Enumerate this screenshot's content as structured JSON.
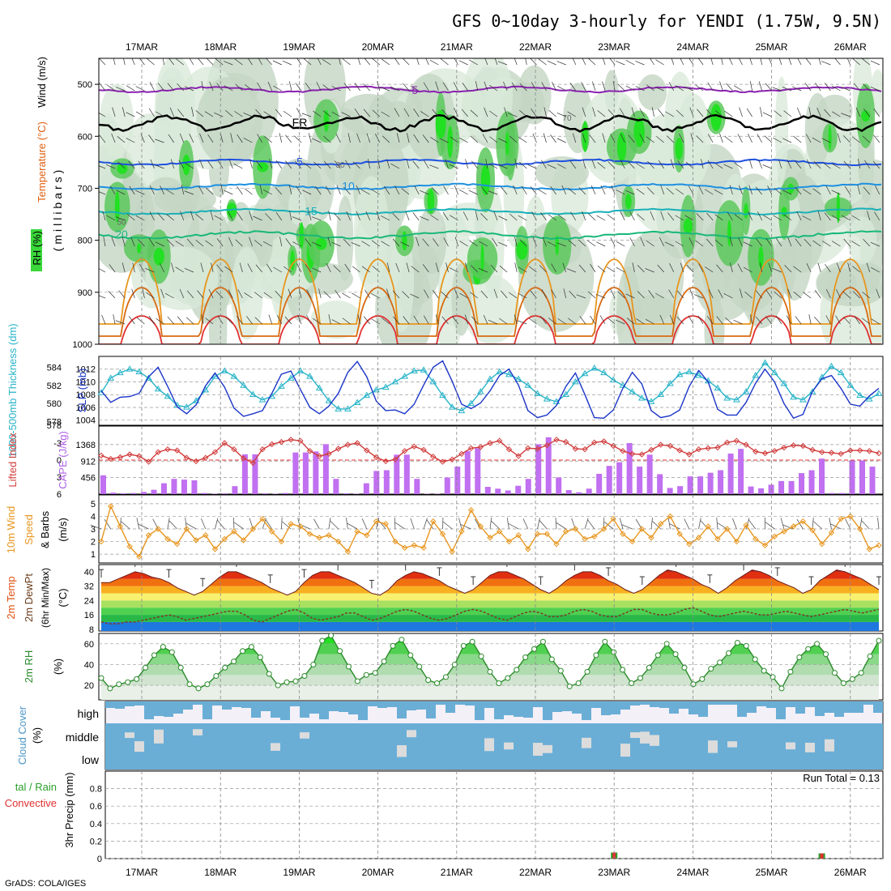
{
  "title": "GFS 0~10day 3-hourly for YENDI (1.75W, 9.5N)",
  "footer": "GrADS: COLA/IGES",
  "dates": [
    "17MAR",
    "18MAR",
    "19MAR",
    "20MAR",
    "21MAR",
    "22MAR",
    "23MAR",
    "24MAR",
    "25MAR",
    "26MAR"
  ],
  "colors": {
    "rh_green_light": "#e6f4e6",
    "rh_green_mid": "#c8dcc8",
    "rh_green_bright": "#3ad83a",
    "slp_line": "#1a34c8",
    "thickness_line": "#28b4c8",
    "li_line": "#d23c3c",
    "cape_bar": "#c070f0",
    "wind_line": "#e8961e",
    "rh_line": "#2a8a2a",
    "cloud": "#6aaed6",
    "precip_rain": "#2aa02a",
    "precip_conv": "#e03030"
  },
  "chart_data": [
    {
      "type": "area",
      "panel": "upper-air",
      "ylabel": "(millibars)",
      "side_labels": [
        "Wind (m/s)",
        "Temperature (°C)",
        "RH (%)"
      ],
      "yticks": [
        500,
        600,
        700,
        800,
        900,
        1000
      ],
      "ylim": [
        1000,
        450
      ],
      "isotherm_labels": [
        "-5",
        "FR",
        "5",
        "10",
        "15",
        "20"
      ],
      "rh_labels": [
        "30",
        "50",
        "70"
      ]
    },
    {
      "type": "line",
      "panel": "slp-thickness",
      "ylabel_left": "1000-500mb Thickness (dm)",
      "ylabel_right": "SLP (mb)",
      "thickness_ticks": [
        578,
        580,
        582,
        584
      ],
      "slp_ticks": [
        1004,
        1006,
        1008,
        1010,
        1012
      ],
      "series": [
        {
          "name": "SLP",
          "axis": "slp",
          "values": [
            1008.6,
            1006.8,
            1007.6,
            1007.7,
            1008.2,
            1010.8,
            1012.3,
            1009.3,
            1006.1,
            1005.0,
            1006.4,
            1009.4,
            1011.4,
            1009.2,
            1005.9,
            1004.6,
            1005.0,
            1005.5,
            1008.2,
            1011.2,
            1011.7,
            1008.8,
            1006.0,
            1005.0,
            1006.2,
            1008.2,
            1011.5,
            1013.2,
            1010.8,
            1007.0,
            1005.5,
            1005.6,
            1005.0,
            1006.5,
            1009.5,
            1012.3,
            1013.3,
            1010.1,
            1006.5,
            1005.8,
            1006.7,
            1008.6,
            1011.0,
            1012.0,
            1009.5,
            1005.5,
            1004.4,
            1004.8,
            1006.3,
            1009.3,
            1011.4,
            1008.0,
            1004.4,
            1004.3,
            1005.6,
            1009.0,
            1011.5,
            1009.7,
            1005.5,
            1004.4,
            1004.7,
            1005.6,
            1009.3,
            1011.8,
            1010.0,
            1005.7,
            1004.8,
            1004.8,
            1006.8,
            1009.8,
            1012.0,
            1010.0,
            1006.6,
            1004.3,
            1004.9,
            1008.5,
            1010.5,
            1011.0,
            1009.0,
            1006.5,
            1006.2,
            1007.8,
            1009.0
          ]
        },
        {
          "name": "Thickness",
          "axis": "thickness",
          "values": [
            581.2,
            582.8,
            583.4,
            583.8,
            583.5,
            582.8,
            581.6,
            580.8,
            579.8,
            579.6,
            580.3,
            581.5,
            583.0,
            583.6,
            583.0,
            582.0,
            581.0,
            580.4,
            580.8,
            581.9,
            582.8,
            583.6,
            583.0,
            581.7,
            580.3,
            579.4,
            579.4,
            580.1,
            580.9,
            581.5,
            581.8,
            582.4,
            583.0,
            583.6,
            583.7,
            582.4,
            580.9,
            579.6,
            579.2,
            580.0,
            581.3,
            582.7,
            583.5,
            583.2,
            582.7,
            582.0,
            581.1,
            580.5,
            580.2,
            581.0,
            582.4,
            583.3,
            583.9,
            583.4,
            582.6,
            582.0,
            581.3,
            580.6,
            580.2,
            581.0,
            582.2,
            583.2,
            583.5,
            583.1,
            582.5,
            581.7,
            580.6,
            580.4,
            581.3,
            583.1,
            584.5,
            583.4,
            582.2,
            580.7,
            580.4,
            581.3,
            582.9,
            584.1,
            583.4,
            582.0,
            580.9,
            580.5,
            581.1
          ]
        }
      ]
    },
    {
      "type": "bar",
      "panel": "cape-li",
      "ylabel_left": "Lifted Index",
      "ylabel_right": "CAPE (J/kg)",
      "li_ticks": [
        -3,
        0,
        3,
        6
      ],
      "cape_ticks": [
        456,
        912,
        1368
      ],
      "series": [
        {
          "name": "CAPE",
          "axis": "cape",
          "values": [
            520,
            40,
            20,
            30,
            60,
            120,
            300,
            420,
            400,
            380,
            30,
            10,
            20,
            220,
            1100,
            1100,
            20,
            10,
            30,
            1150,
            1150,
            1180,
            1380,
            420,
            20,
            10,
            300,
            640,
            660,
            1090,
            1090,
            420,
            10,
            10,
            460,
            760,
            1190,
            1270,
            200,
            150,
            100,
            230,
            420,
            1380,
            1570,
            460,
            110,
            50,
            150,
            560,
            780,
            880,
            1410,
            760,
            1090,
            550,
            170,
            220,
            490,
            490,
            590,
            660,
            1120,
            1250,
            210,
            160,
            260,
            360,
            360,
            580,
            660,
            980,
            30,
            30,
            930,
            930,
            760
          ]
        },
        {
          "name": "Lifted Index",
          "axis": "li",
          "values": [
            -0.8,
            -0.2,
            -0.5,
            -1.0,
            -0.7,
            0.3,
            -1.4,
            -1.9,
            -1.7,
            -0.4,
            0.2,
            -0.4,
            -1.4,
            -3.0,
            -1.9,
            -0.3,
            0.5,
            -1.9,
            -2.8,
            -3.2,
            -3.6,
            -3.4,
            -1.6,
            -0.7,
            -1.1,
            -2.0,
            -2.7,
            -3.0,
            -1.7,
            -0.5,
            0.2,
            -0.1,
            -1.6,
            -2.4,
            -1.8,
            -0.6,
            0.3,
            -0.1,
            -1.1,
            -2.1,
            -2.3,
            -3.0,
            -3.4,
            -1.9,
            -0.7,
            -2.1,
            -2.0,
            -2.6,
            -3.6,
            -3.2,
            -2.0,
            -1.9,
            -3.1,
            -3.3,
            -2.5,
            -1.6,
            -1.1,
            -1.0,
            -1.8,
            -2.7,
            -2.5,
            -1.7,
            -1.0,
            -1.9,
            -2.1,
            -2.2,
            -3.1,
            -3.4,
            -2.7,
            -1.5,
            -1.2,
            -1.6,
            -2.2,
            -2.6,
            -2.5,
            -1.8,
            -1.4,
            -1.3,
            -1.1,
            -1.7,
            -1.7,
            -1.6,
            -1.2
          ]
        }
      ]
    },
    {
      "type": "line",
      "panel": "wind",
      "ylabel": "10m Wind Speed & Barbs (m/s)",
      "yticks": [
        1,
        2,
        3,
        4,
        5
      ],
      "ylim": [
        0.5,
        5.5
      ],
      "series": [
        {
          "name": "10m Wind Speed",
          "values": [
            2.0,
            4.8,
            3.2,
            1.6,
            0.8,
            2.5,
            3.0,
            2.2,
            1.8,
            3.0,
            2.1,
            2.5,
            1.4,
            2.2,
            2.8,
            2.1,
            3.0,
            3.8,
            2.8,
            2.0,
            3.4,
            3.2,
            2.6,
            2.3,
            2.5,
            2.0,
            1.2,
            2.8,
            2.5,
            3.6,
            3.4,
            2.0,
            1.5,
            1.7,
            1.5,
            3.6,
            2.6,
            1.2,
            2.8,
            4.5,
            3.2,
            2.3,
            2.8,
            2.0,
            2.5,
            1.4,
            2.6,
            2.6,
            1.8,
            2.8,
            3.0,
            2.2,
            2.4,
            3.0,
            3.8,
            2.6,
            2.0,
            3.0,
            2.3,
            3.4,
            4.0,
            2.6,
            1.8,
            2.3,
            3.2,
            2.2,
            3.0,
            2.0,
            3.3,
            2.2,
            1.7,
            2.4,
            2.8,
            3.2,
            3.6,
            2.9,
            1.8,
            2.7,
            3.8,
            4.0,
            3.0,
            1.4,
            1.7
          ]
        }
      ]
    },
    {
      "type": "line",
      "panel": "temperature",
      "ylabel": "2m Temp / 2m DewPt (6hr Min/Max) (°C)",
      "yticks": [
        8,
        16,
        24,
        32,
        40
      ],
      "ylim": [
        8,
        44
      ],
      "series": [
        {
          "name": "2m Temp",
          "values": [
            34,
            34,
            36,
            38,
            40,
            39,
            37,
            36,
            34,
            31,
            29,
            27,
            29,
            33,
            37,
            40,
            40,
            38,
            36,
            34,
            31,
            29,
            27,
            29,
            34,
            38,
            40,
            40,
            38,
            36,
            34,
            31,
            28,
            27,
            30,
            35,
            38,
            40,
            39,
            37,
            35,
            32,
            30,
            28,
            30,
            34,
            38,
            40,
            40,
            38,
            36,
            33,
            30,
            28,
            31,
            35,
            38,
            40,
            40,
            38,
            35,
            33,
            30,
            28,
            30,
            34,
            38,
            41,
            40,
            38,
            36,
            33,
            31,
            28,
            31,
            35,
            38,
            41,
            40,
            38,
            35,
            33,
            31,
            28,
            30,
            35,
            38,
            41,
            40,
            38,
            36,
            33,
            30
          ]
        },
        {
          "name": "2m DewPt",
          "values": [
            12,
            11,
            11,
            12,
            12,
            13,
            14,
            15,
            16,
            15,
            13,
            14,
            15,
            16,
            17,
            18,
            18,
            16,
            13,
            12,
            14,
            16,
            18,
            19,
            17,
            14,
            13,
            14,
            15,
            17,
            17,
            15,
            13,
            14,
            16,
            18,
            19,
            18,
            16,
            14,
            13,
            14,
            16,
            18,
            19,
            18,
            16,
            14,
            13,
            15,
            17,
            18,
            17,
            15,
            15,
            16,
            18,
            19,
            18,
            16,
            15,
            15,
            17,
            19,
            19,
            17,
            16,
            16,
            17,
            19,
            20,
            18,
            16,
            15,
            16,
            17,
            18,
            17,
            16,
            16,
            17,
            18,
            17,
            16,
            15,
            16,
            17,
            18,
            19,
            18,
            17,
            18,
            19
          ]
        }
      ]
    },
    {
      "type": "line",
      "panel": "rh",
      "ylabel": "2m RH (%)",
      "yticks": [
        20,
        40,
        60
      ],
      "ylim": [
        10,
        70
      ],
      "series": [
        {
          "name": "2m RH",
          "values": [
            27,
            17,
            21,
            23,
            26,
            37,
            49,
            57,
            52,
            37,
            21,
            17,
            21,
            29,
            37,
            43,
            53,
            57,
            47,
            31,
            20,
            23,
            24,
            29,
            40,
            63,
            68,
            53,
            38,
            24,
            30,
            32,
            43,
            58,
            64,
            49,
            38,
            25,
            22,
            28,
            40,
            58,
            62,
            48,
            33,
            22,
            27,
            35,
            47,
            55,
            62,
            45,
            34,
            19,
            22,
            33,
            49,
            62,
            52,
            35,
            22,
            27,
            37,
            49,
            60,
            50,
            37,
            21,
            26,
            36,
            42,
            51,
            61,
            58,
            45,
            34,
            28,
            17,
            33,
            47,
            55,
            60,
            50,
            32,
            22,
            26,
            32,
            48,
            63
          ]
        }
      ]
    },
    {
      "type": "area",
      "panel": "cloud-cover",
      "ylabel": "Cloud Cover (%)",
      "layers": [
        "high",
        "middle",
        "low"
      ]
    },
    {
      "type": "bar",
      "panel": "precip",
      "ylabel": "3hr Precip (mm)",
      "side_labels": [
        "Total / Rain",
        "Convective"
      ],
      "yticks": [
        0,
        0.2,
        0.4,
        0.6,
        0.8
      ],
      "ylim": [
        0,
        1.0
      ],
      "annotation": "Run Total = 0.13",
      "bars": [
        {
          "date": "23MAR",
          "rain": 0.07,
          "convective": 0.07
        },
        {
          "date": "25MAR",
          "rain": 0.06,
          "convective": 0.06
        }
      ]
    }
  ]
}
